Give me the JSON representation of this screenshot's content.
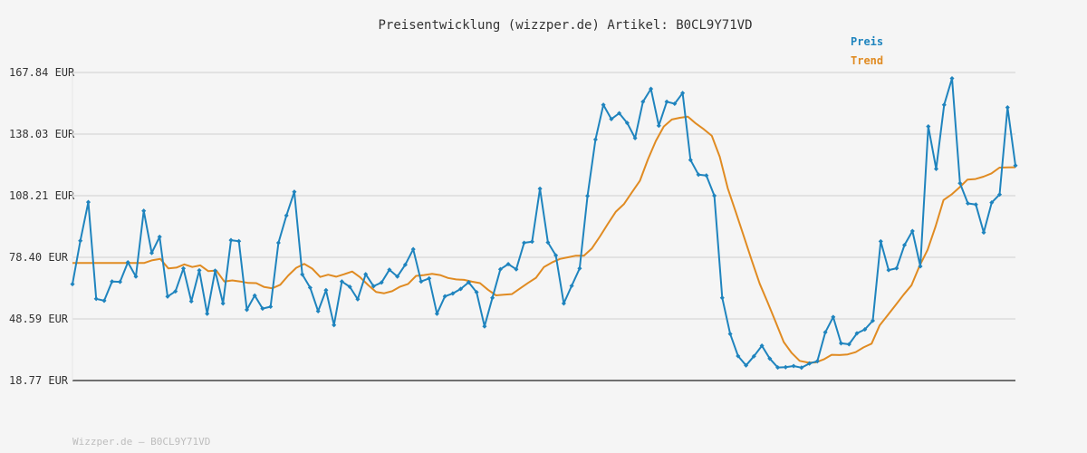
{
  "chart_data": {
    "type": "line",
    "title": "Preisentwicklung (wizzper.de) Artikel: B0CL9Y71VD",
    "xlabel": "",
    "ylabel": "",
    "y_ticks": [
      "18.77 EUR",
      "48.59 EUR",
      "78.40 EUR",
      "108.21 EUR",
      "138.03 EUR",
      "167.84 EUR"
    ],
    "ylim": [
      18.77,
      167.84
    ],
    "grid": true,
    "legend_placement": "top-right",
    "series": [
      {
        "name": "Preis",
        "color": "#1f84be",
        "values": [
          65.4,
          86.4,
          105.1,
          58.3,
          57.4,
          66.7,
          66.5,
          76.0,
          69.1,
          100.9,
          80.5,
          88.3,
          59.4,
          61.9,
          73.0,
          57.1,
          72.1,
          51.1,
          71.9,
          56.1,
          86.7,
          86.2,
          53.0,
          59.9,
          53.6,
          54.5,
          85.4,
          98.6,
          110.1,
          70.1,
          63.7,
          52.3,
          62.5,
          45.6,
          66.7,
          64.1,
          58.1,
          70.2,
          64.4,
          66.2,
          72.4,
          69.1,
          74.8,
          82.3,
          66.7,
          68.2,
          51.1,
          59.5,
          60.9,
          63.1,
          66.3,
          61.5,
          45.0,
          58.8,
          72.6,
          75.1,
          72.6,
          85.4,
          86.0,
          111.6,
          85.6,
          79.3,
          56.1,
          64.6,
          73.0,
          108.1,
          135.4,
          152.2,
          145.3,
          148.1,
          143.4,
          136.1,
          153.7,
          159.9,
          142.1,
          153.7,
          152.7,
          157.9,
          125.5,
          118.4,
          118.0,
          108.2,
          58.8,
          41.3,
          30.6,
          26.1,
          30.5,
          35.6,
          29.4,
          25.1,
          25.2,
          25.8,
          25.0,
          27.0,
          28.1,
          42.1,
          49.5,
          36.8,
          36.3,
          41.6,
          43.5,
          47.7,
          86.1,
          72.2,
          73.1,
          84.3,
          91.1,
          74.0,
          141.7,
          121.2,
          152.2,
          165.0,
          114.2,
          104.5,
          103.9,
          90.4,
          104.9,
          108.8,
          150.9,
          122.8
        ]
      },
      {
        "name": "Trend",
        "color": "#e08b22",
        "values": [
          75.7,
          75.7,
          75.7,
          75.7,
          75.7,
          75.7,
          75.7,
          75.7,
          75.7,
          75.7,
          77.0,
          77.6,
          73.0,
          73.4,
          75.0,
          73.7,
          74.5,
          71.7,
          72.0,
          66.7,
          67.2,
          66.7,
          66.0,
          65.9,
          64.0,
          63.4,
          65.1,
          69.6,
          73.3,
          75.2,
          72.9,
          68.9,
          70.0,
          69.0,
          70.2,
          71.5,
          68.7,
          65.0,
          61.6,
          61.0,
          62.0,
          64.2,
          65.5,
          69.4,
          69.8,
          70.4,
          69.8,
          68.4,
          67.7,
          67.5,
          66.6,
          65.9,
          62.7,
          60.0,
          60.3,
          60.6,
          63.3,
          66.0,
          68.5,
          73.7,
          75.9,
          77.6,
          78.4,
          79.2,
          79.2,
          82.7,
          88.5,
          94.6,
          100.5,
          104.1,
          109.8,
          115.4,
          125.7,
          134.7,
          141.7,
          145.1,
          145.9,
          146.5,
          143.2,
          140.4,
          137.2,
          127.0,
          111.8,
          100.4,
          88.6,
          76.9,
          65.6,
          56.5,
          47.1,
          37.4,
          32.1,
          28.3,
          27.5,
          27.5,
          29.0,
          31.2,
          31.1,
          31.4,
          32.5,
          34.8,
          36.6,
          45.4,
          50.3,
          55.3,
          60.3,
          64.9,
          74.2,
          82.0,
          93.3,
          106.1,
          108.8,
          112.2,
          116.0,
          116.3,
          117.4,
          119.0,
          121.8,
          121.9,
          122.0
        ]
      }
    ]
  }
}
